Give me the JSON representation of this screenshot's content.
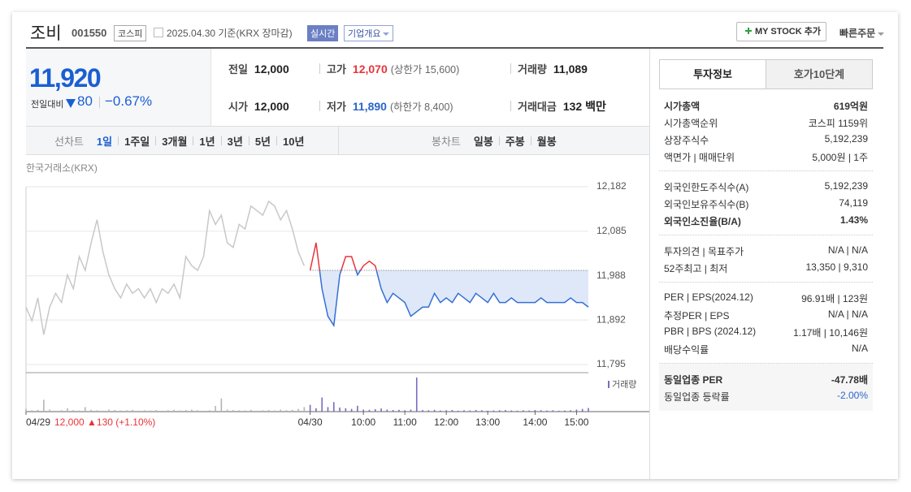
{
  "header": {
    "name": "조비",
    "code": "001550",
    "market": "코스피",
    "date": "2025.04.30 기준(KRX 장마감)",
    "realtime": "실시간",
    "company": "기업개요",
    "mystock": "MY STOCK 추가",
    "quick_order": "빠른주문"
  },
  "quote": {
    "price": "11,920",
    "change_label": "전일대비",
    "change": "80",
    "change_rate": "−0.67%"
  },
  "stats": [
    [
      {
        "label": "전일",
        "value": "12,000"
      },
      {
        "label": "고가",
        "value": "12,070",
        "color": "#e8343a",
        "note": "(상한가 15,600)"
      },
      {
        "label": "거래량",
        "value": "11,089"
      }
    ],
    [
      {
        "label": "시가",
        "value": "12,000"
      },
      {
        "label": "저가",
        "value": "11,890",
        "color": "#2a65c9",
        "note": "(하한가 8,400)"
      },
      {
        "label": "거래대금",
        "value": "132 백만"
      }
    ]
  ],
  "period_tabs": {
    "line": [
      "선차트",
      "1일",
      "1주일",
      "3개월",
      "1년",
      "3년",
      "5년",
      "10년"
    ],
    "candle": [
      "봉차트",
      "일봉",
      "주봉",
      "월봉"
    ],
    "active": 1
  },
  "info_panel": {
    "tabs": [
      "투자정보",
      "호가10단계"
    ],
    "active": 0,
    "groups": [
      [
        {
          "label": "시가총액",
          "value": "619억원",
          "bold": true
        },
        {
          "label": "시가총액순위",
          "value": "코스피 1159위"
        },
        {
          "label": "상장주식수",
          "value": "5,192,239"
        },
        {
          "label": "액면가 | 매매단위",
          "value": "5,000원 | 1주"
        }
      ],
      [
        {
          "label": "외국인한도주식수(A)",
          "value": "5,192,239"
        },
        {
          "label": "외국인보유주식수(B)",
          "value": "74,119"
        },
        {
          "label": "외국인소진율(B/A)",
          "value": "1.43%",
          "bold": true
        }
      ],
      [
        {
          "label": "투자의견 | 목표주가",
          "value": "N/A | N/A"
        },
        {
          "label": "52주최고 | 최저",
          "value": "13,350 | 9,310"
        }
      ],
      [
        {
          "label": "PER | EPS(2024.12)",
          "value": "96.91배 | 123원"
        },
        {
          "label": "추정PER | EPS",
          "value": "N/A | N/A"
        },
        {
          "label": "PBR | BPS (2024.12)",
          "value": "1.17배 | 10,146원"
        },
        {
          "label": "배당수익률",
          "value": "N/A"
        }
      ],
      [
        {
          "label": "동일업종 PER",
          "value": "-47.78배",
          "bold": true
        },
        {
          "label": "동일업종 등락률",
          "value": "-2.00%",
          "color": "#2a65c9"
        }
      ]
    ],
    "shaded_group": 4
  },
  "chart_data": {
    "type": "line",
    "source": "한국거래소(KRX)",
    "annotation": "12,000 ▲130 (+1.10%)",
    "volume_label": "거래량",
    "categories": [
      "04/29",
      null,
      null,
      null,
      null,
      null,
      null,
      null,
      null,
      null,
      null,
      null,
      null,
      null,
      null,
      null,
      null,
      null,
      null,
      null,
      null,
      null,
      null,
      null,
      null,
      null,
      null,
      null,
      null,
      null,
      null,
      null,
      null,
      null,
      null,
      null,
      null,
      null,
      null,
      null,
      null,
      null,
      null,
      null,
      null,
      null,
      null,
      null,
      "04/30",
      null,
      null,
      null,
      null,
      null,
      null,
      null,
      null,
      "10:00",
      null,
      null,
      null,
      null,
      null,
      null,
      "11:00",
      null,
      null,
      null,
      null,
      null,
      null,
      "12:00",
      null,
      null,
      null,
      null,
      null,
      null,
      "13:00",
      null,
      null,
      null,
      null,
      null,
      null,
      null,
      "14:00",
      null,
      null,
      null,
      null,
      null,
      null,
      "15:00",
      null,
      null
    ],
    "series": [
      {
        "color": "#c8c8c8",
        "values": [
          11920,
          11890,
          11940,
          11860,
          11920,
          11950,
          11930,
          11990,
          11960,
          12030,
          12000,
          12060,
          12110,
          12040,
          11990,
          11960,
          11940,
          11970,
          11950,
          11960,
          11940,
          11960,
          11930,
          11960,
          11950,
          11970,
          11940,
          12030,
          12010,
          12000,
          12030,
          12130,
          12100,
          12120,
          12060,
          12050,
          12100,
          12090,
          12140,
          12130,
          12120,
          12150,
          12140,
          12110,
          12130,
          12090,
          12040,
          12010,
          null,
          null,
          null,
          null,
          null,
          null,
          null,
          null,
          null,
          null,
          null,
          null,
          null,
          null,
          null,
          null,
          null,
          null,
          null,
          null,
          null,
          null,
          null,
          null,
          null,
          null,
          null,
          null,
          null,
          null,
          null,
          null,
          null,
          null,
          null,
          null,
          null,
          null,
          null,
          null,
          null,
          null,
          null,
          null,
          null,
          null,
          null,
          null
        ]
      },
      {
        "color": "#3470d6",
        "color_above": "#e8343a",
        "fill": "#dfe8f8",
        "values": [
          null,
          null,
          null,
          null,
          null,
          null,
          null,
          null,
          null,
          null,
          null,
          null,
          null,
          null,
          null,
          null,
          null,
          null,
          null,
          null,
          null,
          null,
          null,
          null,
          null,
          null,
          null,
          null,
          null,
          null,
          null,
          null,
          null,
          null,
          null,
          null,
          null,
          null,
          null,
          null,
          null,
          null,
          null,
          null,
          null,
          null,
          null,
          null,
          12000,
          12060,
          11960,
          11900,
          11880,
          11990,
          12030,
          12030,
          11990,
          12010,
          12020,
          12010,
          11960,
          11930,
          11950,
          11940,
          11930,
          11900,
          11910,
          11920,
          11920,
          11950,
          11930,
          11940,
          11930,
          11950,
          11940,
          11930,
          11950,
          11940,
          11930,
          11950,
          11930,
          11930,
          11940,
          11930,
          11930,
          11930,
          11930,
          11940,
          11930,
          11930,
          11930,
          11930,
          11940,
          11930,
          11930,
          11920
        ]
      }
    ],
    "volume_series": [
      {
        "color": "#b4b4b4",
        "values": [
          120,
          60,
          80,
          520,
          90,
          40,
          60,
          150,
          70,
          50,
          200,
          80,
          60,
          40,
          90,
          70,
          50,
          60,
          80,
          40,
          60,
          50,
          70,
          40,
          60,
          80,
          50,
          70,
          90,
          60,
          40,
          60,
          250,
          580,
          90,
          70,
          60,
          50,
          80,
          40,
          60,
          70,
          50,
          90,
          60,
          80,
          120,
          200,
          null,
          null,
          null,
          null,
          null,
          null,
          null,
          null,
          null,
          null,
          null,
          null,
          null,
          null,
          null,
          null,
          null,
          null,
          null,
          null,
          null,
          null,
          null,
          null,
          null,
          null,
          null,
          null,
          null,
          null,
          null,
          null,
          null,
          null,
          null,
          null,
          null,
          null,
          null,
          null,
          null,
          null,
          null,
          null,
          null,
          null,
          null,
          null
        ]
      },
      {
        "color": "#7b6bbf",
        "values": [
          null,
          null,
          null,
          null,
          null,
          null,
          null,
          null,
          null,
          null,
          null,
          null,
          null,
          null,
          null,
          null,
          null,
          null,
          null,
          null,
          null,
          null,
          null,
          null,
          null,
          null,
          null,
          null,
          null,
          null,
          null,
          null,
          null,
          null,
          null,
          null,
          null,
          null,
          null,
          null,
          null,
          null,
          null,
          null,
          null,
          null,
          null,
          null,
          300,
          150,
          620,
          200,
          420,
          180,
          150,
          120,
          260,
          90,
          80,
          110,
          140,
          90,
          70,
          80,
          60,
          90,
          1500,
          70,
          60,
          80,
          50,
          60,
          70,
          40,
          60,
          50,
          70,
          60,
          40,
          50,
          60,
          70,
          50,
          40,
          60,
          50,
          70,
          60,
          50,
          60,
          40,
          50,
          60,
          90,
          120,
          160
        ]
      }
    ],
    "reference_line": 12000,
    "ylim": [
      11795,
      12182
    ],
    "yticks": [
      {
        "value": 11795,
        "label": "11,795"
      },
      {
        "value": 11892,
        "label": "11,892"
      },
      {
        "value": 11988,
        "label": "11,988"
      },
      {
        "value": 12085,
        "label": "12,085"
      },
      {
        "value": 12182,
        "label": "12,182"
      }
    ],
    "grid": true
  }
}
